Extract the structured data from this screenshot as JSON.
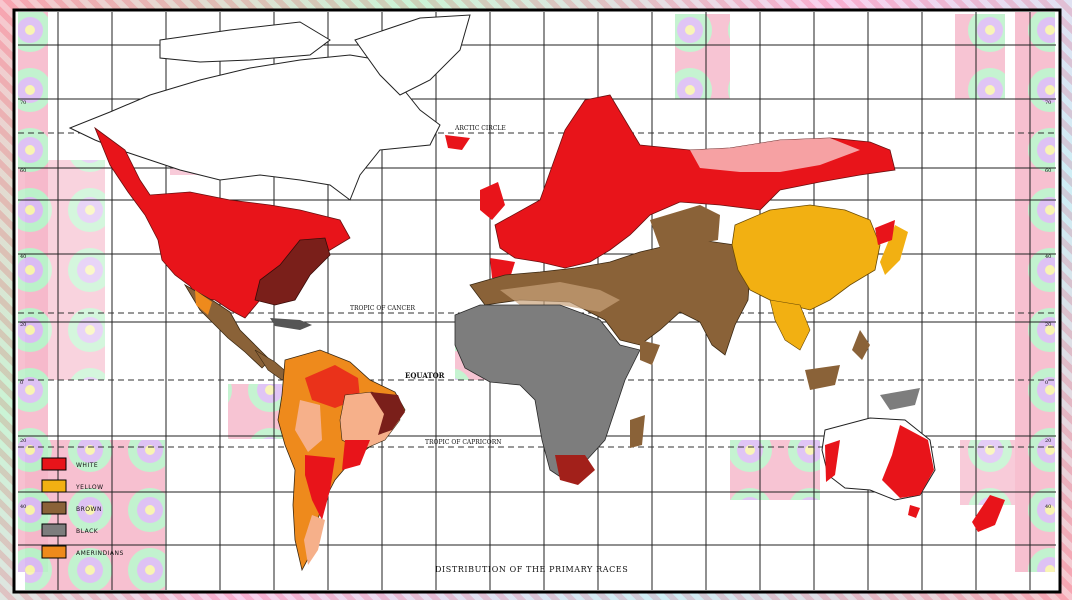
{
  "map": {
    "title": "DISTRIBUTION OF THE PRIMARY RACES",
    "labels": {
      "arctic_circle": "ARCTIC CIRCLE",
      "tropic_of_cancer": "TROPIC OF CANCER",
      "equator": "EQUATOR",
      "tropic_of_capricorn": "TROPIC OF CAPRICORN"
    },
    "latitude_ticks_left": [
      "70",
      "60",
      "40",
      "20",
      "0",
      "20",
      "40",
      "60"
    ],
    "latitude_ticks_right": [
      "70",
      "60",
      "40",
      "20",
      "0",
      "20",
      "40",
      "60"
    ],
    "legend": [
      {
        "label": "WHITE",
        "color": "#e8141a"
      },
      {
        "label": "YELLOW",
        "color": "#f2b012"
      },
      {
        "label": "BROWN",
        "color": "#8a6238"
      },
      {
        "label": "BLACK",
        "color": "#7d7d7d"
      },
      {
        "label": "AMERINDIANS",
        "color": "#ee8a1c"
      }
    ],
    "colors": {
      "white_race": "#e8141a",
      "dark_red": "#7a1f1a",
      "yellow_race": "#f2b012",
      "brown_race": "#8a6238",
      "black_race": "#7d7d7d",
      "amerindians": "#ee8a1c",
      "peach": "#f6b08a",
      "frame": "#f3b7b7"
    }
  }
}
